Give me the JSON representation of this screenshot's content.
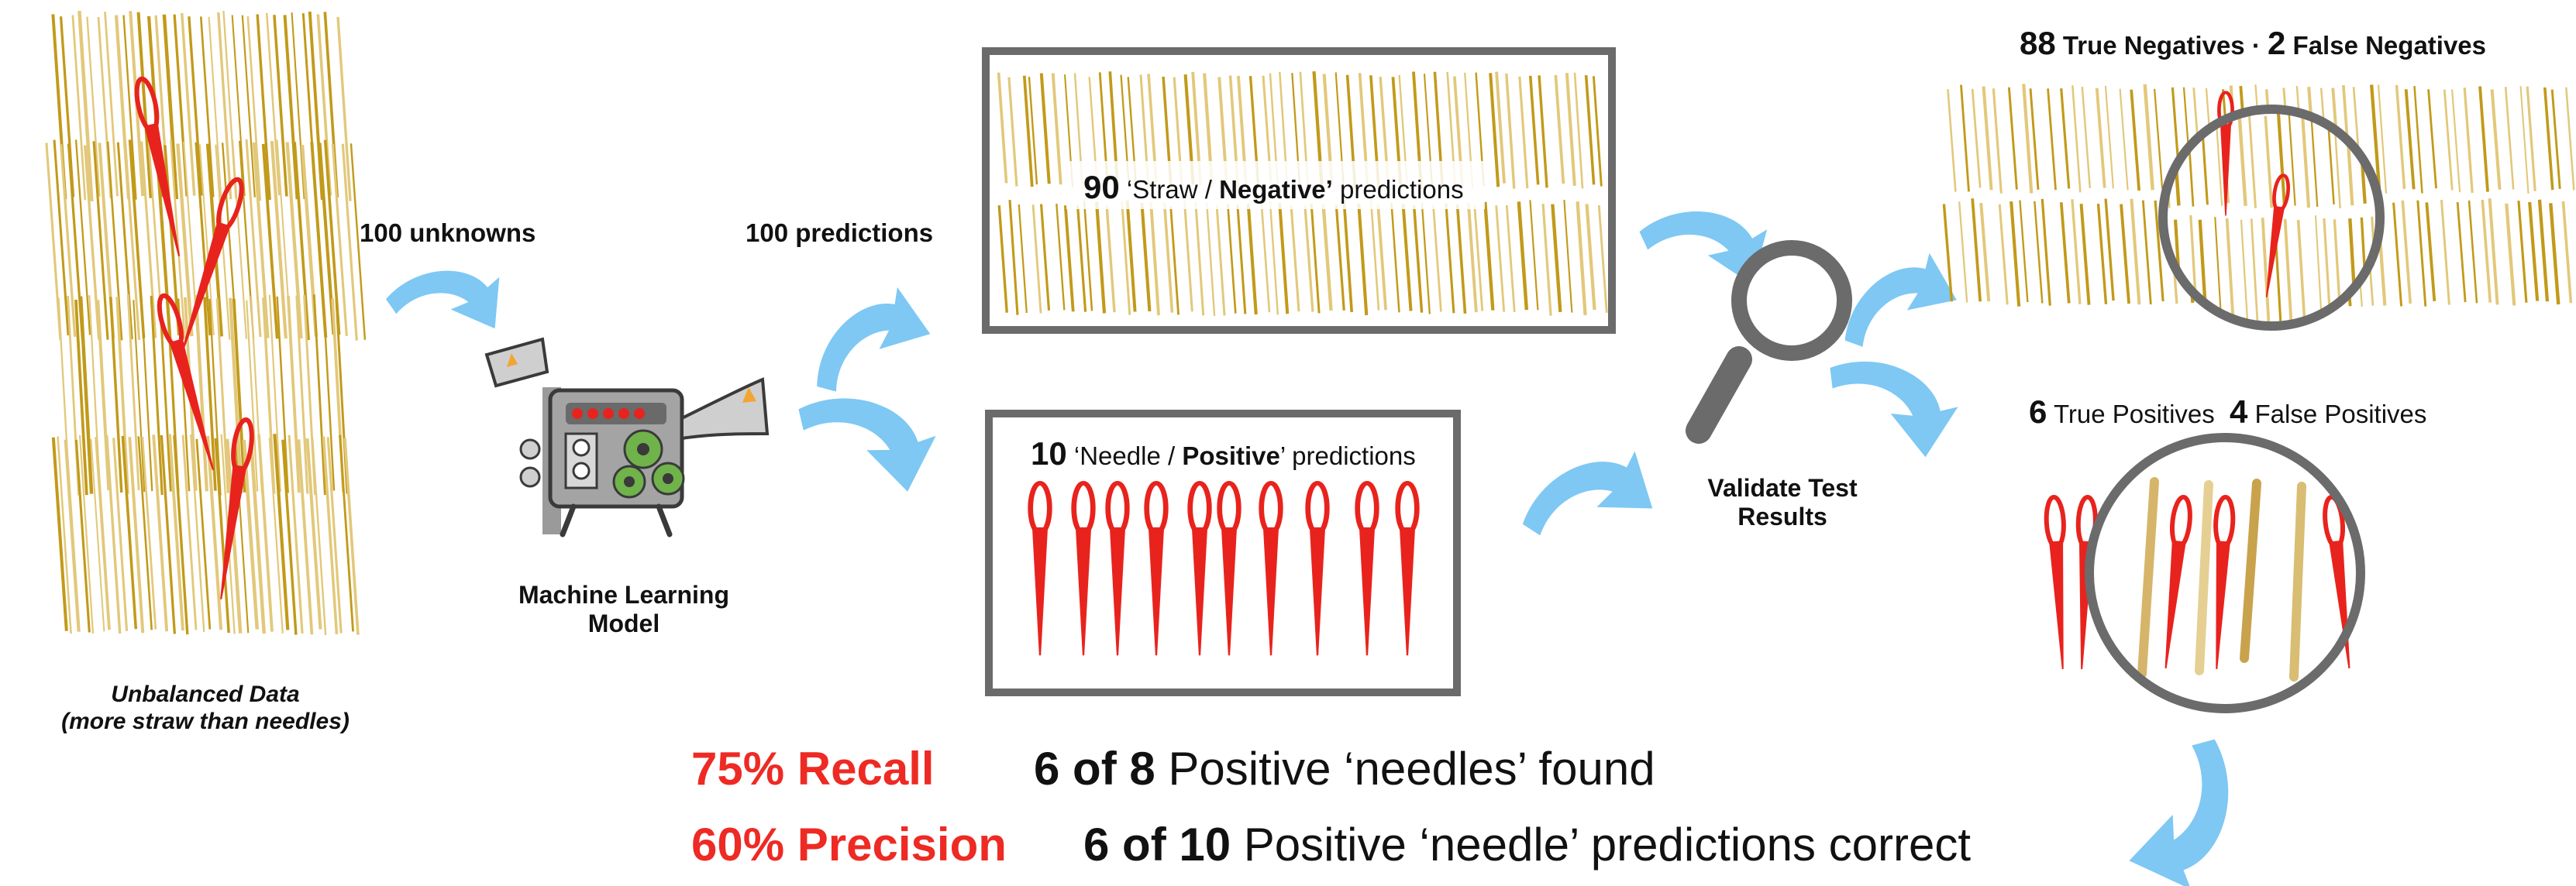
{
  "colors": {
    "straw": "#c29a1a",
    "straw_light": "#e2c87a",
    "needle": "#e8231d",
    "arrow": "#7ec8f3",
    "frame": "#6b6b6b",
    "highlight": "#ee2a24"
  },
  "icons": [
    "machine-learning-model-icon",
    "magnifying-glass-icon",
    "needle-icon",
    "straw-icon",
    "curved-arrow-icon"
  ],
  "input": {
    "caption_line1": "Unbalanced Data",
    "caption_line2": "(more straw than needles)"
  },
  "flow": {
    "unknowns_label": "100 unknowns",
    "predictions_label": "100 predictions",
    "model_line1": "Machine Learning",
    "model_line2": "Model",
    "validate_line1": "Validate Test",
    "validate_line2": "Results"
  },
  "negative_box": {
    "count": "90",
    "label_pre": "‘Straw / ",
    "label_bold": "Negative’",
    "label_post": " predictions"
  },
  "positive_box": {
    "count": "10",
    "label_pre": "‘Needle / ",
    "label_bold": "Positive",
    "label_post": "’ predictions"
  },
  "negatives_result": {
    "tn_count": "88",
    "tn_label": "True Negatives",
    "sep": "·",
    "fn_count": "2",
    "fn_label": "False Negatives"
  },
  "positives_result": {
    "tp_count": "6",
    "tp_label": "True Positives",
    "fp_count": "4",
    "fp_label": "False Positives"
  },
  "metrics": {
    "recall_label": "75% Recall",
    "recall_fraction": "6 of 8",
    "recall_text": "Positive ‘needles’ found",
    "precision_label": "60% Precision",
    "precision_fraction": "6 of 10",
    "precision_text": "Positive ‘needle’ predictions correct"
  }
}
